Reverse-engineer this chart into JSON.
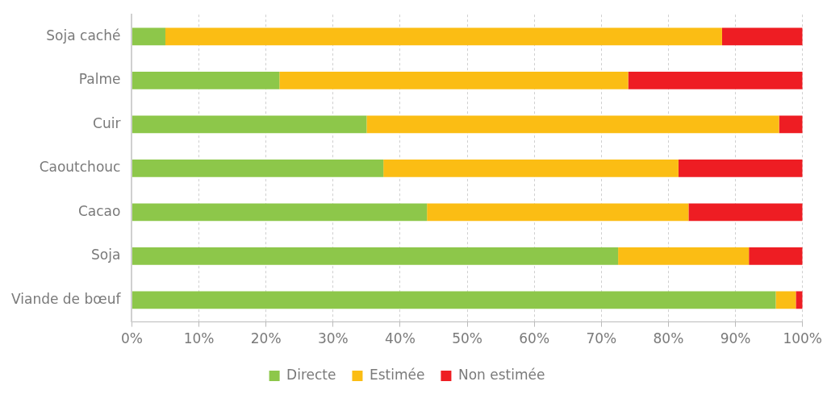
{
  "chart_data": {
    "type": "bar",
    "orientation": "horizontal",
    "stacked": true,
    "categories": [
      "Soja caché",
      "Palme",
      "Cuir",
      "Caoutchouc",
      "Cacao",
      "Soja",
      "Viande de bœuf"
    ],
    "series": [
      {
        "name": "Directe",
        "color": "#8dc74a",
        "values": [
          5,
          22,
          35,
          37.5,
          44,
          72.5,
          96
        ]
      },
      {
        "name": "Estimée",
        "color": "#fbbd14",
        "values": [
          83,
          52,
          61.5,
          44,
          39,
          19.5,
          3
        ]
      },
      {
        "name": "Non estimée",
        "color": "#ee1d23",
        "values": [
          12,
          26,
          3.5,
          18.5,
          17,
          8,
          1
        ]
      }
    ],
    "xlim": [
      0,
      100
    ],
    "xticks": [
      {
        "value": 0,
        "label": "0%"
      },
      {
        "value": 10,
        "label": "10%"
      },
      {
        "value": 20,
        "label": "20%"
      },
      {
        "value": 30,
        "label": "30%"
      },
      {
        "value": 40,
        "label": "40%"
      },
      {
        "value": 50,
        "label": "50%"
      },
      {
        "value": 60,
        "label": "60%"
      },
      {
        "value": 70,
        "label": "70%"
      },
      {
        "value": 80,
        "label": "80%"
      },
      {
        "value": 90,
        "label": "90%"
      },
      {
        "value": 100,
        "label": "100%"
      }
    ],
    "grid": "x",
    "legend": "bottom"
  }
}
